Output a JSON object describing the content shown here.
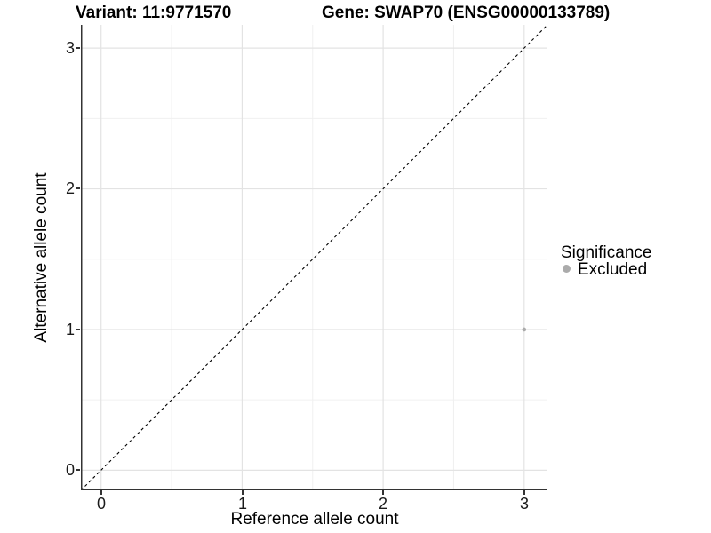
{
  "header": {
    "variant_title": "Variant: 11:9771570",
    "gene_title": "Gene: SWAP70 (ENSG00000133789)"
  },
  "chart_data": {
    "type": "scatter",
    "xlabel": "Reference allele count",
    "ylabel": "Alternative allele count",
    "xlim": [
      -0.143,
      3.165
    ],
    "ylim": [
      -0.143,
      3.165
    ],
    "x_ticks": [
      0,
      1,
      2,
      3
    ],
    "y_ticks": [
      0,
      1,
      2,
      3
    ],
    "grid": "major and minor gridlines, light gray on white",
    "legend_position": "right",
    "legend_title": "Significance",
    "series": [
      {
        "name": "Excluded",
        "color": "#ababab",
        "marker_radius": 2.3,
        "points": [
          {
            "x": 3,
            "y": 1
          }
        ]
      }
    ],
    "reference_line": {
      "type": "identity y = x",
      "style": "dashed",
      "color": "#000000"
    }
  },
  "style": {
    "grid_major_color": "#e3e3e3",
    "grid_minor_color": "#f0f0f0",
    "axis_line_color": "#333333",
    "background": "#ffffff"
  }
}
